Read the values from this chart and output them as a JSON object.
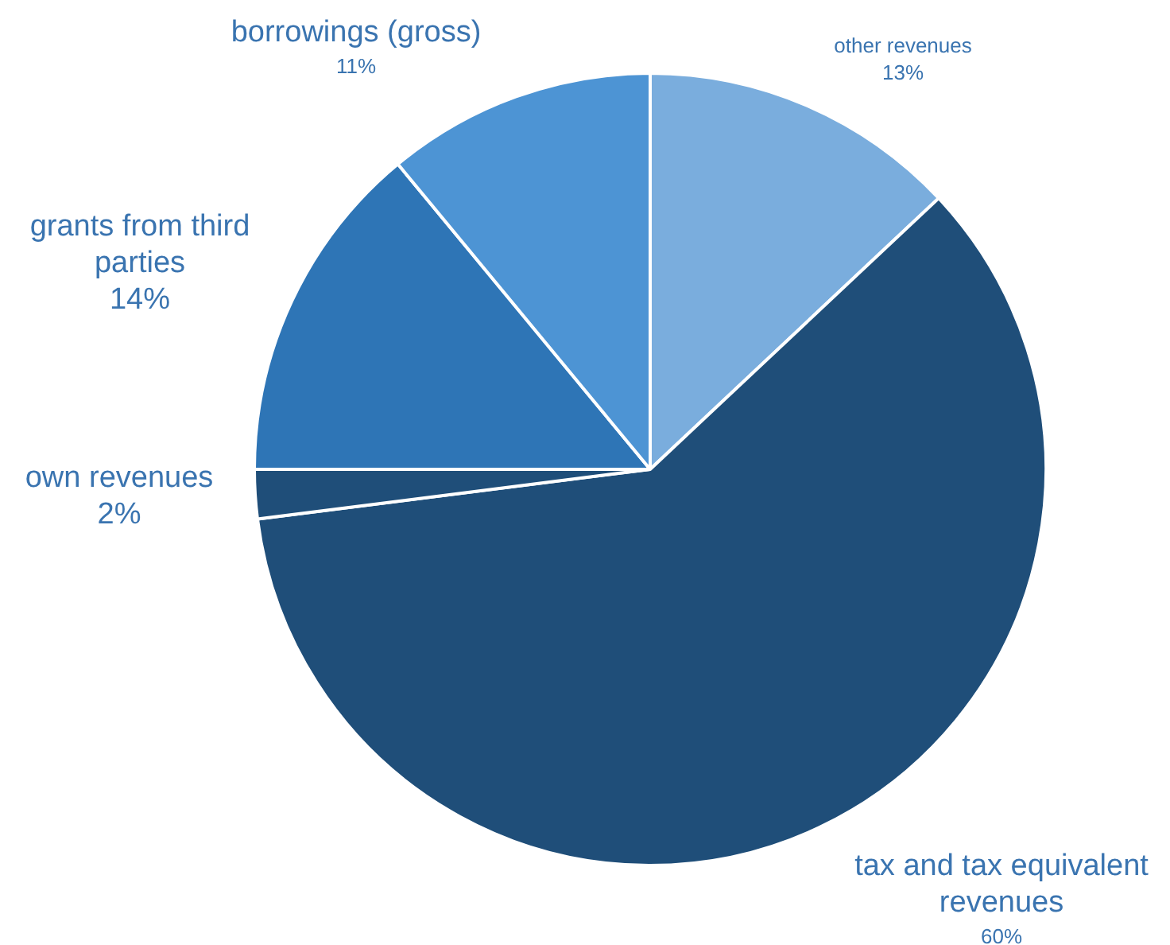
{
  "chart_data": {
    "type": "pie",
    "categories": [
      "other revenues",
      "tax and tax equivalent revenues",
      "own revenues",
      "grants from third parties",
      "borrowings (gross)"
    ],
    "values": [
      13,
      60,
      2,
      14,
      11
    ],
    "colors": [
      "#7aaddd",
      "#1f4e79",
      "#1f4e79",
      "#2e75b6",
      "#4d94d4"
    ],
    "value_labels": [
      "13%",
      "60%",
      "2%",
      "14%",
      "11%"
    ],
    "legend": false
  }
}
